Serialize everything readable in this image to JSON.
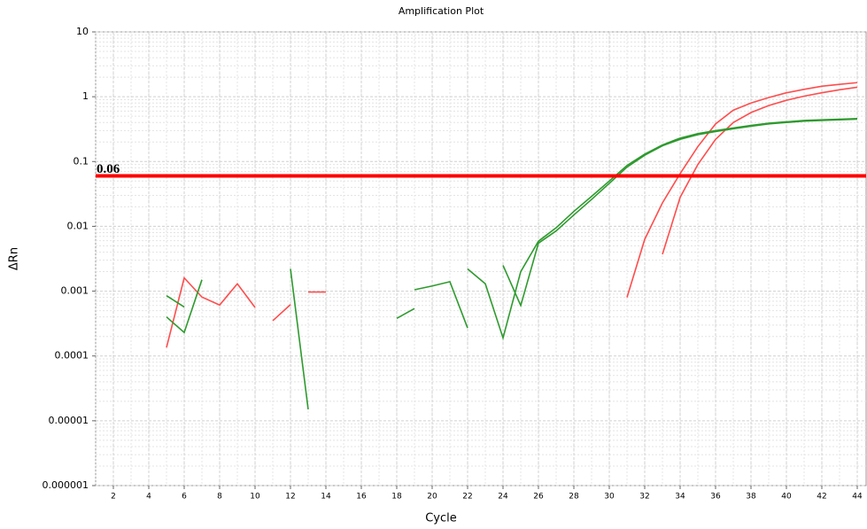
{
  "chart_data": {
    "type": "line",
    "title": "Amplification Plot",
    "x_label": "Cycle",
    "y_label": "ΔRn",
    "log_y": true,
    "grid": true,
    "x": [
      1,
      2,
      3,
      4,
      5,
      6,
      7,
      8,
      9,
      10,
      11,
      12,
      13,
      14,
      15,
      16,
      17,
      18,
      19,
      20,
      21,
      22,
      23,
      24,
      25,
      26,
      27,
      28,
      29,
      30,
      31,
      32,
      33,
      34,
      35,
      36,
      37,
      38,
      39,
      40,
      41,
      42,
      43,
      44
    ],
    "xlim": [
      1,
      44.5
    ],
    "xticks": [
      2,
      4,
      6,
      8,
      10,
      12,
      14,
      16,
      18,
      20,
      22,
      24,
      26,
      28,
      30,
      32,
      34,
      36,
      38,
      40,
      42,
      44
    ],
    "ylim": [
      1e-06,
      10
    ],
    "yticks": [
      10,
      1,
      0.1,
      0.01,
      0.001,
      0.0001,
      1e-05,
      1e-06
    ],
    "threshold": 0.06,
    "threshold_color": "#ff0000",
    "series": [
      {
        "color": "#ff4d4d",
        "values": [
          null,
          null,
          null,
          null,
          0.000135,
          0.0016,
          0.00081,
          0.00061,
          0.0013,
          0.00056,
          null,
          null,
          0.00097,
          0.00097,
          null,
          null,
          null,
          null,
          null,
          null,
          null,
          null,
          null,
          null,
          null,
          null,
          null,
          null,
          null,
          null,
          0.0008,
          0.0063,
          0.023,
          0.065,
          0.17,
          0.38,
          0.62,
          0.8,
          0.97,
          1.15,
          1.3,
          1.45,
          1.55,
          1.65
        ]
      },
      {
        "color": "#ff4d4d",
        "values": [
          null,
          null,
          null,
          null,
          null,
          null,
          null,
          null,
          null,
          null,
          0.00035,
          0.00062,
          null,
          null,
          null,
          null,
          null,
          null,
          null,
          null,
          null,
          null,
          null,
          null,
          null,
          null,
          null,
          null,
          null,
          null,
          null,
          null,
          0.0037,
          0.028,
          0.09,
          0.22,
          0.4,
          0.57,
          0.73,
          0.88,
          1.02,
          1.15,
          1.28,
          1.4
        ]
      },
      {
        "color": "#2e9a2e",
        "values": [
          null,
          null,
          null,
          null,
          0.0004,
          0.00023,
          0.0015,
          null,
          null,
          null,
          null,
          0.0022,
          1.5e-05,
          null,
          null,
          null,
          null,
          0.00038,
          0.00054,
          null,
          null,
          0.0022,
          0.0013,
          0.00019,
          0.002,
          0.0059,
          0.0095,
          0.017,
          0.029,
          0.05,
          0.087,
          0.13,
          0.18,
          0.23,
          0.27,
          0.3,
          0.33,
          0.36,
          0.39,
          0.41,
          0.43,
          0.44,
          0.45,
          0.46
        ]
      },
      {
        "color": "#2e9a2e",
        "values": [
          null,
          null,
          null,
          null,
          0.00085,
          0.00057,
          null,
          null,
          null,
          null,
          null,
          null,
          null,
          null,
          null,
          null,
          null,
          null,
          0.00105,
          0.0012,
          0.0014,
          0.00027,
          null,
          0.0025,
          0.0006,
          0.0055,
          0.0085,
          0.015,
          0.026,
          0.046,
          0.082,
          0.125,
          0.175,
          0.22,
          0.26,
          0.29,
          0.32,
          0.35,
          0.38,
          0.4,
          0.42,
          0.43,
          0.44,
          0.45
        ]
      }
    ]
  }
}
